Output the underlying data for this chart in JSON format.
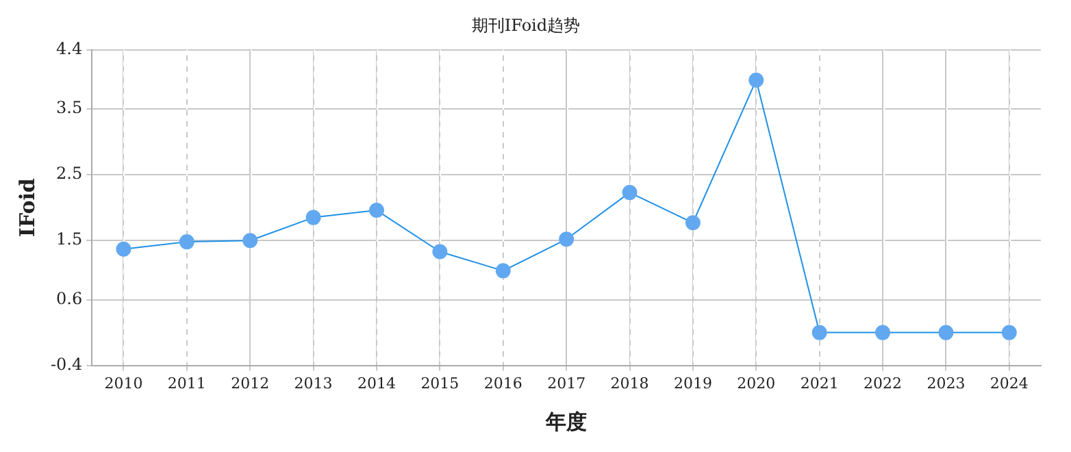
{
  "chart_data": {
    "type": "line",
    "title": "期刊IFoid趋势",
    "xlabel": "年度",
    "ylabel": "IFoid",
    "categories": [
      "2010",
      "2011",
      "2012",
      "2013",
      "2014",
      "2015",
      "2016",
      "2017",
      "2018",
      "2019",
      "2020",
      "2021",
      "2022",
      "2023",
      "2024"
    ],
    "series": [
      {
        "color": "#1e90e6",
        "values": [
          1.37,
          1.48,
          1.5,
          1.85,
          1.96,
          1.33,
          1.04,
          1.52,
          2.23,
          1.77,
          3.94,
          0.1,
          0.1,
          0.1,
          0.1
        ]
      }
    ],
    "ylim": [
      -0.4,
      4.4
    ],
    "yticks": [
      -0.4,
      0.6,
      1.5,
      2.5,
      3.5,
      4.4
    ],
    "grid": true,
    "marker": "circle",
    "line_style": "solid",
    "legend": false
  }
}
